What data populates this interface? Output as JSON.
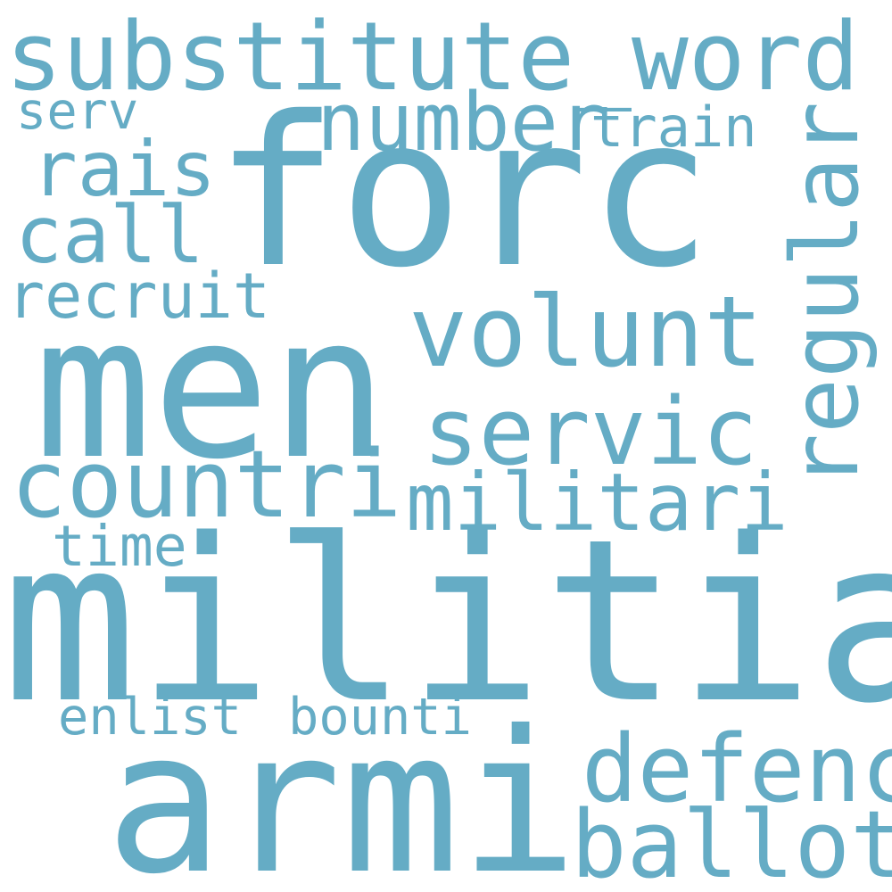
{
  "word_cloud": {
    "color": "#65acc5",
    "background": "#ffffff",
    "words": [
      {
        "text": "substitute_word"
      },
      {
        "text": "forc"
      },
      {
        "text": "serv"
      },
      {
        "text": "number"
      },
      {
        "text": "train"
      },
      {
        "text": "rais"
      },
      {
        "text": "call"
      },
      {
        "text": "regular"
      },
      {
        "text": "recruit"
      },
      {
        "text": "volunt"
      },
      {
        "text": "men"
      },
      {
        "text": "servic"
      },
      {
        "text": "countri"
      },
      {
        "text": "militari"
      },
      {
        "text": "time"
      },
      {
        "text": "militia"
      },
      {
        "text": "enlist"
      },
      {
        "text": "bounti"
      },
      {
        "text": "armi"
      },
      {
        "text": "defenc"
      },
      {
        "text": "ballot"
      }
    ]
  }
}
